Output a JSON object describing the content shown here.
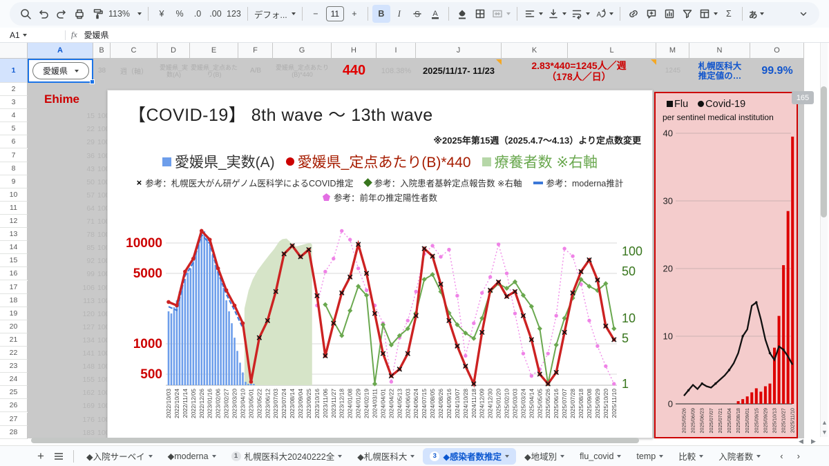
{
  "toolbar": {
    "zoom": "113%",
    "currency": "¥",
    "percent": "%",
    "dec_dec": ".0",
    "dec_inc": ".00",
    "num": "123",
    "font_family": "デフォ...",
    "font_size": "11",
    "bold": "B",
    "italic": "I",
    "sigma": "Σ",
    "ime": "あ",
    "minus": "−",
    "plus": "+"
  },
  "formula_bar": {
    "cell_ref": "A1",
    "fx": "fx",
    "value": "愛媛県"
  },
  "grid": {
    "column_letters": [
      "A",
      "B",
      "C",
      "D",
      "E",
      "F",
      "G",
      "H",
      "I",
      "J",
      "K",
      "L",
      "M",
      "N",
      "O"
    ],
    "row_count": 28,
    "row1": {
      "a": "愛媛県",
      "b": "38",
      "c": "週（軸）",
      "d": "愛媛県_実数(A)",
      "e": "愛媛県_定点あたり(B)",
      "f": "A/B",
      "g": "愛媛県_定点あたり(B)*440",
      "h": "440",
      "i": "108.38%",
      "j": "2025/11/17- 11/23",
      "k1": "2.83*440=1245人／週",
      "k2": "（178人／日）",
      "m": "1245",
      "n1": "札幌医科大",
      "n2": "推定値の…",
      "o": "99.9%"
    },
    "ehime": "Ehime",
    "week_numbers": [
      15,
      22,
      29,
      36,
      43,
      50,
      57,
      64,
      71,
      78,
      85,
      92,
      99,
      106,
      113,
      120,
      127,
      134,
      141,
      148,
      155,
      162,
      169,
      176,
      183
    ],
    "week_second": "100",
    "row_badge": "165"
  },
  "chart_data": [
    {
      "type": "line+bar+area",
      "title": "【COVID-19】 8th wave ～ 13th wave",
      "note": "※2025年第15週（2025.4.7～4.13）より定点数変更",
      "left_ticks": [
        10000,
        5000,
        1000,
        500
      ],
      "right_ticks": [
        100,
        50,
        10,
        5,
        1
      ],
      "left_color": "#cc0000",
      "right_color": "#38761d",
      "x_labels": [
        "2022/10/03",
        "2022/10/24",
        "2022/11/14",
        "2022/12/05",
        "2022/12/26",
        "2023/01/16",
        "2023/02/06",
        "2023/02/27",
        "2023/03/20",
        "2023/04/10",
        "2023/05/01",
        "2023/05/22",
        "2023/06/12",
        "2023/07/03",
        "2023/07/24",
        "2023/08/14",
        "2023/09/04",
        "2023/09/25",
        "2023/10/16",
        "2023/11/06",
        "2023/11/27",
        "2023/12/18",
        "2024/01/08",
        "2024/01/29",
        "2024/02/19",
        "2024/03/11",
        "2024/04/01",
        "2024/04/22",
        "2024/05/13",
        "2024/06/03",
        "2024/06/24",
        "2024/07/15",
        "2024/08/05",
        "2024/08/26",
        "2024/09/16",
        "2024/10/07",
        "2024/10/28",
        "2024/11/18",
        "2024/12/09",
        "2024/12/30",
        "2025/01/20",
        "2025/02/10",
        "2025/03/03",
        "2025/03/24",
        "2025/04/14",
        "2025/05/05",
        "2025/05/26",
        "2025/06/16",
        "2025/07/07",
        "2025/07/28",
        "2025/08/18",
        "2025/09/08",
        "2025/09/29",
        "2025/10/20",
        "2025/11/10"
      ],
      "legend_rows": [
        [
          {
            "m": "square",
            "c": "#6d9eeb",
            "t": "愛媛県_実数(A)",
            "tc": "#333333"
          },
          {
            "m": "circle",
            "c": "#cc0000",
            "t": "愛媛県_定点あたり(B)*440",
            "tc": "#a61c00"
          },
          {
            "m": "square",
            "c": "#b6d7a8",
            "t": "療養者数 ※右軸",
            "tc": "#6aa84f"
          }
        ],
        [
          {
            "m": "x",
            "c": "#000000",
            "t": "参考：札幌医大がん研ゲノム医科学によるCOVID推定",
            "tc": "#333333"
          },
          {
            "m": "diamond",
            "c": "#38761d",
            "t": "参考：入院患者基幹定点報告数 ※右軸",
            "tc": "#333333"
          },
          {
            "m": "dash",
            "c": "#3c78d8",
            "t": "参考：moderna推計",
            "tc": "#333333"
          }
        ],
        [
          {
            "m": "pentagon",
            "c": "#e36ee3",
            "t": "参考：前年の推定陽性者数",
            "tc": "#333333"
          }
        ]
      ],
      "series": {
        "bars": {
          "name": "愛媛県_実数(A)",
          "color": "#6d9eeb",
          "per_slot": 3,
          "values": [
            2100,
            2000,
            2300,
            2700,
            3300,
            3900,
            4400,
            5100,
            5600,
            6600,
            8100,
            10600,
            12600,
            13100,
            11600,
            9600,
            7600,
            6100,
            5300,
            4600,
            3600,
            2700,
            2100,
            1600,
            1150,
            850,
            650,
            520,
            420,
            360,
            310,
            260
          ]
        },
        "area": {
          "name": "療養者数",
          "color": "#d6e4c8",
          "axis": "right",
          "points": [
            [
              9.2,
              14
            ],
            [
              9.7,
              26
            ],
            [
              10.2,
              38
            ],
            [
              10.8,
              52
            ],
            [
              11.5,
              68
            ],
            [
              12.2,
              88
            ],
            [
              12.8,
              108
            ],
            [
              13.4,
              140
            ],
            [
              13.8,
              152
            ],
            [
              14.3,
              155
            ],
            [
              14.9,
              132
            ],
            [
              15.5,
              118
            ],
            [
              16.1,
              124
            ],
            [
              16.7,
              130
            ],
            [
              17.2,
              133
            ],
            [
              17.4,
              126
            ]
          ]
        },
        "moderna": {
          "name": "参考：moderna推計",
          "color": "#3c78d8",
          "start": 0,
          "values": [
            2450,
            2250,
            4950,
            6700,
            12700,
            10300,
            5300,
            3250,
            2250,
            1500
          ]
        },
        "red": {
          "name": "愛媛県_定点あたり(B)*440",
          "color": "#cc2222",
          "x_marker_start": 11,
          "x_marker_color": "#111111",
          "values": [
            2600,
            2400,
            5200,
            7000,
            13200,
            10800,
            5600,
            3400,
            2400,
            1600,
            420,
            1150,
            1700,
            3300,
            7800,
            9400,
            7300,
            8600,
            3000,
            760,
            1600,
            3200,
            4600,
            9700,
            5000,
            2000,
            800,
            480,
            560,
            800,
            1900,
            8800,
            7400,
            3900,
            1700,
            950,
            600,
            380,
            1300,
            3400,
            4100,
            2950,
            3300,
            1900,
            1100,
            500,
            330,
            520,
            1300,
            3200,
            5200,
            6800,
            4300,
            1500,
            1100
          ]
        },
        "green": {
          "name": "参考：入院患者基幹定点報告数",
          "color": "#6aa84f",
          "axis": "right",
          "start": 19,
          "values": [
            16,
            9,
            5.5,
            13,
            30,
            22,
            0.35,
            8,
            4,
            5.5,
            7,
            12,
            38,
            45,
            25,
            12,
            8,
            6,
            5,
            10,
            25,
            33,
            28,
            35,
            22,
            15,
            7,
            0.35,
            4,
            10,
            20,
            38,
            30,
            26,
            33,
            7
          ]
        },
        "prev_year": {
          "name": "参考：前年の推定陽性者数",
          "color": "#ee7de6",
          "derived_from": "red",
          "shift": 17,
          "start": 18
        }
      }
    },
    {
      "type": "bar+line",
      "bg": "#f4cccc",
      "border": "#cc0000",
      "legend": [
        {
          "m": "square",
          "c": "#111111",
          "t": "Flu"
        },
        {
          "m": "circle",
          "c": "#111111",
          "t": "Covid-19"
        }
      ],
      "subtitle": "per sentinel medical institution",
      "y_ticks": [
        0,
        10,
        20,
        30,
        40
      ],
      "x_labels": [
        "2025/05/26",
        "2025/06/09",
        "2025/06/23",
        "2025/07/07",
        "2025/07/21",
        "2025/08/04",
        "2025/08/18",
        "2025/09/01",
        "2025/09/15",
        "2025/09/29",
        "2025/10/13",
        "2025/10/27",
        "2025/11/10"
      ],
      "label_every": 2,
      "series": {
        "flu": {
          "name": "Flu",
          "type": "bar",
          "color": "#dd0000",
          "values": [
            0,
            0,
            0,
            0,
            0,
            0,
            0,
            0,
            0,
            0,
            0,
            0,
            0.4,
            0.7,
            1.1,
            1.7,
            2.3,
            1.8,
            2.6,
            3.0,
            8.3,
            13.0,
            20.5,
            28.5,
            39.5
          ]
        },
        "covid": {
          "name": "Covid-19",
          "type": "line",
          "color": "#111111",
          "values": [
            1.2,
            2.0,
            2.8,
            2.2,
            3.0,
            2.6,
            2.4,
            3.0,
            3.6,
            4.2,
            5.0,
            6.0,
            7.5,
            10.0,
            11.0,
            14.5,
            15.0,
            12.5,
            9.5,
            7.5,
            6.5,
            8.5,
            8.0,
            7.0,
            5.8
          ]
        }
      }
    }
  ],
  "tabs": {
    "items": [
      {
        "label": "◆入院サーベイ"
      },
      {
        "label": "◆moderna"
      },
      {
        "label": "札幌医科大20240222全",
        "badge": "1"
      },
      {
        "label": "◆札幌医科大"
      },
      {
        "label": "◆感染者数推定",
        "badge": "3",
        "active": true
      },
      {
        "label": "◆地域別"
      },
      {
        "label": "flu_covid"
      },
      {
        "label": "temp"
      },
      {
        "label": "比較"
      },
      {
        "label": "入院者数"
      }
    ]
  }
}
